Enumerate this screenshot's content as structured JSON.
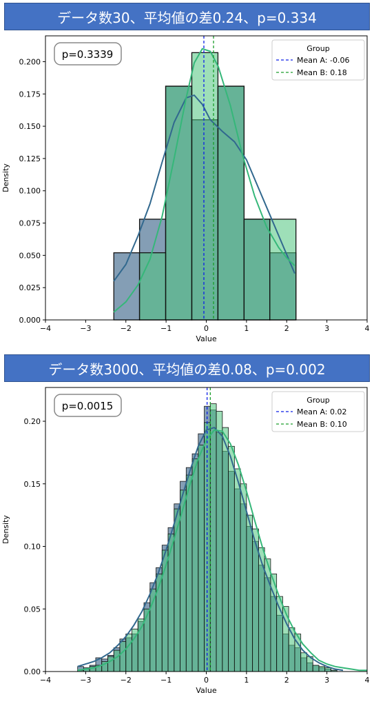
{
  "panels": [
    {
      "title": "データ数30、平均値の差0.24、p=0.334"
    },
    {
      "title": "データ数3000、平均値の差0.08、p=0.002"
    }
  ],
  "colors": {
    "groupA_fill": "#5b7e9c",
    "groupB_fill": "#4ec47e",
    "overlap": "#3d8a8a",
    "meanA_line": "#0b1ee8",
    "meanB_line": "#1a9e2a",
    "kdeA": "#31688e",
    "kdeB": "#35b779"
  },
  "chart_data": [
    {
      "type": "histogram",
      "xlabel": "Value",
      "ylabel": "Density",
      "xlim": [
        -4,
        4
      ],
      "ylim": [
        0,
        0.22
      ],
      "xticks": [
        -4,
        -3,
        -2,
        -1,
        0,
        1,
        2,
        3,
        4
      ],
      "yticks": [
        0.0,
        0.025,
        0.05,
        0.075,
        0.1,
        0.125,
        0.15,
        0.175,
        0.2
      ],
      "ytick_labels": [
        "0.000",
        "0.025",
        "0.050",
        "0.075",
        "0.100",
        "0.125",
        "0.150",
        "0.175",
        "0.200"
      ],
      "annotation": "p=0.3339",
      "legend": {
        "title": "Group",
        "position": "top-right",
        "entries": [
          "Mean A: -0.06",
          "Mean B: 0.18"
        ]
      },
      "bin_edges": [
        -2.3,
        -1.66,
        -1.01,
        -0.36,
        0.29,
        0.94,
        1.58,
        2.23
      ],
      "series": [
        {
          "name": "A",
          "values": [
            0.052,
            0.078,
            0.181,
            0.155,
            0.181,
            0.078,
            0.052
          ],
          "mean": -0.06
        },
        {
          "name": "B",
          "values": [
            0.0,
            0.052,
            0.181,
            0.207,
            0.181,
            0.078,
            0.078
          ],
          "mean": 0.18
        }
      ],
      "kde": [
        {
          "name": "A",
          "x": [
            -2.3,
            -2.0,
            -1.7,
            -1.4,
            -1.1,
            -0.8,
            -0.5,
            -0.3,
            -0.1,
            0.1,
            0.4,
            0.7,
            1.0,
            1.3,
            1.6,
            1.9,
            2.2
          ],
          "y": [
            0.03,
            0.043,
            0.065,
            0.09,
            0.122,
            0.153,
            0.172,
            0.174,
            0.167,
            0.155,
            0.146,
            0.138,
            0.124,
            0.102,
            0.08,
            0.058,
            0.036
          ]
        },
        {
          "name": "B",
          "x": [
            -2.3,
            -2.0,
            -1.7,
            -1.4,
            -1.1,
            -0.8,
            -0.5,
            -0.3,
            -0.1,
            0.1,
            0.3,
            0.6,
            0.9,
            1.2,
            1.5,
            1.8,
            2.0,
            2.2
          ],
          "y": [
            0.006,
            0.014,
            0.027,
            0.047,
            0.08,
            0.125,
            0.172,
            0.199,
            0.21,
            0.208,
            0.196,
            0.166,
            0.128,
            0.096,
            0.072,
            0.056,
            0.048,
            0.042
          ]
        }
      ]
    },
    {
      "type": "histogram",
      "xlabel": "Value",
      "ylabel": "Density",
      "xlim": [
        -4,
        4
      ],
      "ylim": [
        0,
        0.227
      ],
      "xticks": [
        -4,
        -3,
        -2,
        -1,
        0,
        1,
        2,
        3,
        4
      ],
      "yticks": [
        0.0,
        0.05,
        0.1,
        0.15,
        0.2
      ],
      "ytick_labels": [
        "0.00",
        "0.05",
        "0.10",
        "0.15",
        "0.20"
      ],
      "annotation": "p=0.0015",
      "legend": {
        "title": "Group",
        "position": "top-right",
        "entries": [
          "Mean A: 0.02",
          "Mean B: 0.10"
        ]
      },
      "bin_edges": [
        -3.2,
        -3.05,
        -2.9,
        -2.75,
        -2.6,
        -2.45,
        -2.3,
        -2.15,
        -2.0,
        -1.85,
        -1.7,
        -1.55,
        -1.4,
        -1.25,
        -1.1,
        -0.95,
        -0.8,
        -0.65,
        -0.5,
        -0.35,
        -0.2,
        -0.05,
        0.1,
        0.25,
        0.4,
        0.55,
        0.7,
        0.85,
        1.0,
        1.15,
        1.3,
        1.45,
        1.6,
        1.75,
        1.9,
        2.05,
        2.2,
        2.35,
        2.5,
        2.65,
        2.8,
        2.95,
        3.1,
        3.25
      ],
      "series": [
        {
          "name": "A",
          "values": [
            0.004,
            0.003,
            0.005,
            0.011,
            0.01,
            0.013,
            0.019,
            0.026,
            0.027,
            0.03,
            0.04,
            0.055,
            0.071,
            0.083,
            0.101,
            0.115,
            0.134,
            0.152,
            0.163,
            0.174,
            0.19,
            0.212,
            0.209,
            0.191,
            0.176,
            0.16,
            0.146,
            0.134,
            0.116,
            0.104,
            0.085,
            0.075,
            0.06,
            0.045,
            0.03,
            0.021,
            0.019,
            0.011,
            0.007,
            0.005,
            0.003,
            0.002,
            0.001
          ],
          "mean": 0.02
        },
        {
          "name": "B",
          "values": [
            0.001,
            0.002,
            0.004,
            0.005,
            0.008,
            0.012,
            0.017,
            0.024,
            0.03,
            0.034,
            0.042,
            0.05,
            0.066,
            0.078,
            0.097,
            0.11,
            0.13,
            0.145,
            0.157,
            0.17,
            0.181,
            0.199,
            0.214,
            0.208,
            0.195,
            0.18,
            0.162,
            0.15,
            0.125,
            0.114,
            0.099,
            0.09,
            0.078,
            0.06,
            0.052,
            0.035,
            0.03,
            0.015,
            0.012,
            0.005,
            0.004,
            0.003,
            0.001
          ],
          "mean": 0.1
        }
      ],
      "kde": [
        {
          "name": "A",
          "x": [
            -3.2,
            -3.0,
            -2.8,
            -2.6,
            -2.4,
            -2.2,
            -2.0,
            -1.8,
            -1.6,
            -1.4,
            -1.2,
            -1.0,
            -0.8,
            -0.6,
            -0.4,
            -0.2,
            0.0,
            0.2,
            0.4,
            0.6,
            0.8,
            1.0,
            1.2,
            1.4,
            1.6,
            1.8,
            2.0,
            2.2,
            2.4,
            2.6,
            2.8,
            3.0,
            3.2,
            3.4
          ],
          "y": [
            0.004,
            0.006,
            0.008,
            0.011,
            0.015,
            0.021,
            0.028,
            0.037,
            0.048,
            0.062,
            0.078,
            0.097,
            0.118,
            0.14,
            0.161,
            0.18,
            0.193,
            0.195,
            0.188,
            0.172,
            0.151,
            0.128,
            0.105,
            0.085,
            0.068,
            0.052,
            0.038,
            0.026,
            0.017,
            0.011,
            0.007,
            0.004,
            0.002,
            0.001
          ]
        },
        {
          "name": "B",
          "x": [
            -3.2,
            -3.0,
            -2.8,
            -2.6,
            -2.4,
            -2.2,
            -2.0,
            -1.8,
            -1.6,
            -1.4,
            -1.2,
            -1.0,
            -0.8,
            -0.6,
            -0.4,
            -0.2,
            0.0,
            0.2,
            0.4,
            0.6,
            0.8,
            1.0,
            1.2,
            1.4,
            1.6,
            1.8,
            2.0,
            2.2,
            2.4,
            2.6,
            2.8,
            3.0,
            3.2,
            3.4,
            3.6,
            3.8,
            4.0
          ],
          "y": [
            0.001,
            0.002,
            0.003,
            0.005,
            0.008,
            0.012,
            0.018,
            0.026,
            0.036,
            0.05,
            0.066,
            0.085,
            0.106,
            0.128,
            0.15,
            0.17,
            0.185,
            0.193,
            0.192,
            0.182,
            0.165,
            0.144,
            0.121,
            0.099,
            0.079,
            0.061,
            0.045,
            0.032,
            0.022,
            0.015,
            0.009,
            0.006,
            0.004,
            0.003,
            0.002,
            0.001,
            0.001
          ]
        }
      ]
    }
  ]
}
